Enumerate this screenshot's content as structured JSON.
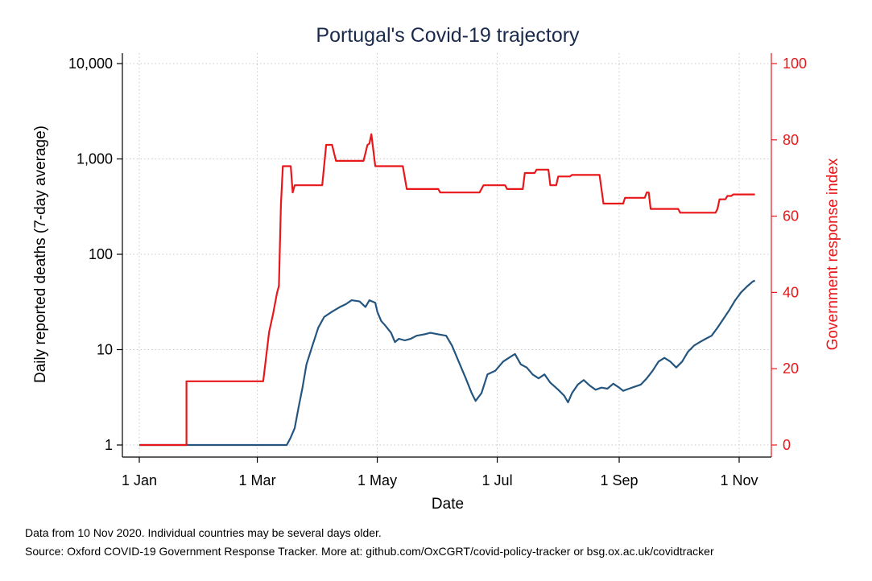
{
  "chart_data": {
    "type": "line",
    "title": "Portugal's Covid-19 trajectory",
    "xlabel": "Date",
    "ylabel_left": "Daily reported deaths (7-day average)",
    "ylabel_right": "Government response index",
    "x_ticks": [
      {
        "date": "2020-01-01",
        "label": "1 Jan"
      },
      {
        "date": "2020-03-01",
        "label": "1 Mar"
      },
      {
        "date": "2020-05-01",
        "label": "1 May"
      },
      {
        "date": "2020-07-01",
        "label": "1 Jul"
      },
      {
        "date": "2020-09-01",
        "label": "1 Sep"
      },
      {
        "date": "2020-11-01",
        "label": "1 Nov"
      }
    ],
    "xlim": [
      "2020-01-01",
      "2020-11-10"
    ],
    "y_left": {
      "scale": "log",
      "lim": [
        1,
        10000
      ],
      "ticks": [
        1,
        10,
        100,
        1000,
        10000
      ],
      "tick_labels": [
        "1",
        "10",
        "100",
        "1,000",
        "10,000"
      ]
    },
    "y_right": {
      "scale": "linear",
      "lim": [
        0,
        100
      ],
      "ticks": [
        0,
        20,
        40,
        60,
        80,
        100
      ],
      "tick_labels": [
        "0",
        "20",
        "40",
        "60",
        "80",
        "100"
      ]
    },
    "grid": true,
    "series": [
      {
        "axis": "left",
        "color": "#24557f",
        "step": false,
        "points": [
          [
            "2020-01-01",
            1
          ],
          [
            "2020-03-16",
            1
          ],
          [
            "2020-03-18",
            1.2
          ],
          [
            "2020-03-20",
            1.5
          ],
          [
            "2020-03-22",
            2.5
          ],
          [
            "2020-03-24",
            4
          ],
          [
            "2020-03-26",
            7
          ],
          [
            "2020-03-29",
            11
          ],
          [
            "2020-04-01",
            17
          ],
          [
            "2020-04-04",
            22
          ],
          [
            "2020-04-08",
            25
          ],
          [
            "2020-04-12",
            28
          ],
          [
            "2020-04-15",
            30
          ],
          [
            "2020-04-18",
            33
          ],
          [
            "2020-04-22",
            32
          ],
          [
            "2020-04-25",
            28
          ],
          [
            "2020-04-27",
            33
          ],
          [
            "2020-04-30",
            31
          ],
          [
            "2020-05-01",
            25
          ],
          [
            "2020-05-03",
            20
          ],
          [
            "2020-05-05",
            18
          ],
          [
            "2020-05-08",
            15
          ],
          [
            "2020-05-10",
            12
          ],
          [
            "2020-05-12",
            13
          ],
          [
            "2020-05-15",
            12.5
          ],
          [
            "2020-05-18",
            13
          ],
          [
            "2020-05-21",
            14
          ],
          [
            "2020-05-25",
            14.5
          ],
          [
            "2020-05-28",
            15
          ],
          [
            "2020-06-01",
            14.5
          ],
          [
            "2020-06-05",
            14
          ],
          [
            "2020-06-08",
            11
          ],
          [
            "2020-06-12",
            7
          ],
          [
            "2020-06-15",
            5
          ],
          [
            "2020-06-18",
            3.5
          ],
          [
            "2020-06-20",
            2.9
          ],
          [
            "2020-06-23",
            3.5
          ],
          [
            "2020-06-26",
            5.5
          ],
          [
            "2020-06-30",
            6
          ],
          [
            "2020-07-04",
            7.5
          ],
          [
            "2020-07-08",
            8.5
          ],
          [
            "2020-07-10",
            9
          ],
          [
            "2020-07-13",
            7
          ],
          [
            "2020-07-16",
            6.5
          ],
          [
            "2020-07-19",
            5.5
          ],
          [
            "2020-07-22",
            5
          ],
          [
            "2020-07-25",
            5.5
          ],
          [
            "2020-07-28",
            4.5
          ],
          [
            "2020-08-01",
            3.8
          ],
          [
            "2020-08-04",
            3.3
          ],
          [
            "2020-08-06",
            2.8
          ],
          [
            "2020-08-08",
            3.5
          ],
          [
            "2020-08-11",
            4.3
          ],
          [
            "2020-08-14",
            4.8
          ],
          [
            "2020-08-17",
            4.2
          ],
          [
            "2020-08-20",
            3.8
          ],
          [
            "2020-08-23",
            4
          ],
          [
            "2020-08-26",
            3.9
          ],
          [
            "2020-08-29",
            4.4
          ],
          [
            "2020-09-01",
            4
          ],
          [
            "2020-09-03",
            3.7
          ],
          [
            "2020-09-06",
            3.9
          ],
          [
            "2020-09-09",
            4.1
          ],
          [
            "2020-09-12",
            4.3
          ],
          [
            "2020-09-15",
            5
          ],
          [
            "2020-09-18",
            6
          ],
          [
            "2020-09-21",
            7.5
          ],
          [
            "2020-09-24",
            8.2
          ],
          [
            "2020-09-27",
            7.5
          ],
          [
            "2020-09-30",
            6.5
          ],
          [
            "2020-10-03",
            7.5
          ],
          [
            "2020-10-06",
            9.5
          ],
          [
            "2020-10-09",
            11
          ],
          [
            "2020-10-12",
            12
          ],
          [
            "2020-10-15",
            13
          ],
          [
            "2020-10-18",
            14
          ],
          [
            "2020-10-21",
            17
          ],
          [
            "2020-10-24",
            21
          ],
          [
            "2020-10-27",
            26
          ],
          [
            "2020-10-30",
            33
          ],
          [
            "2020-11-02",
            40
          ],
          [
            "2020-11-05",
            46
          ],
          [
            "2020-11-08",
            52
          ],
          [
            "2020-11-09",
            53
          ]
        ]
      },
      {
        "axis": "right",
        "color": "#e8171a",
        "step": true,
        "points": [
          [
            "2020-01-01",
            0
          ],
          [
            "2020-01-25",
            0
          ],
          [
            "2020-01-25",
            16.7
          ],
          [
            "2020-03-04",
            16.7
          ],
          [
            "2020-03-07",
            29.6
          ],
          [
            "2020-03-09",
            34.3
          ],
          [
            "2020-03-11",
            39.8
          ],
          [
            "2020-03-12",
            41.7
          ],
          [
            "2020-03-13",
            63
          ],
          [
            "2020-03-14",
            73.1
          ],
          [
            "2020-03-18",
            73.1
          ],
          [
            "2020-03-19",
            66.2
          ],
          [
            "2020-03-20",
            68.1
          ],
          [
            "2020-04-03",
            68.1
          ],
          [
            "2020-04-05",
            78.7
          ],
          [
            "2020-04-08",
            78.7
          ],
          [
            "2020-04-10",
            74.5
          ],
          [
            "2020-04-24",
            74.5
          ],
          [
            "2020-04-26",
            78.7
          ],
          [
            "2020-04-27",
            79
          ],
          [
            "2020-04-28",
            81.5
          ],
          [
            "2020-04-30",
            73.1
          ],
          [
            "2020-05-14",
            73.1
          ],
          [
            "2020-05-16",
            67.1
          ],
          [
            "2020-06-01",
            67.1
          ],
          [
            "2020-06-02",
            66.2
          ],
          [
            "2020-06-22",
            66.2
          ],
          [
            "2020-06-24",
            68.1
          ],
          [
            "2020-07-05",
            68.1
          ],
          [
            "2020-07-06",
            67.1
          ],
          [
            "2020-07-14",
            67.1
          ],
          [
            "2020-07-15",
            71.3
          ],
          [
            "2020-07-20",
            71.3
          ],
          [
            "2020-07-21",
            72.2
          ],
          [
            "2020-07-27",
            72.2
          ],
          [
            "2020-07-28",
            68.1
          ],
          [
            "2020-07-31",
            68.1
          ],
          [
            "2020-08-01",
            70.4
          ],
          [
            "2020-08-07",
            70.4
          ],
          [
            "2020-08-08",
            70.8
          ],
          [
            "2020-08-22",
            70.8
          ],
          [
            "2020-08-24",
            63.3
          ],
          [
            "2020-09-03",
            63.3
          ],
          [
            "2020-09-04",
            64.8
          ],
          [
            "2020-09-14",
            64.8
          ],
          [
            "2020-09-15",
            66.2
          ],
          [
            "2020-09-16",
            66.2
          ],
          [
            "2020-09-17",
            61.9
          ],
          [
            "2020-10-01",
            61.9
          ],
          [
            "2020-10-02",
            60.9
          ],
          [
            "2020-10-20",
            60.9
          ],
          [
            "2020-10-21",
            61.9
          ],
          [
            "2020-10-22",
            64.4
          ],
          [
            "2020-10-25",
            64.4
          ],
          [
            "2020-10-26",
            65.3
          ],
          [
            "2020-10-28",
            65.3
          ],
          [
            "2020-10-29",
            65.7
          ],
          [
            "2020-11-09",
            65.7
          ]
        ]
      }
    ],
    "notes": [
      "Data from 10 Nov 2020. Individual countries may be several days older.",
      "Source: Oxford COVID-19 Government Response Tracker. More at: github.com/OxCGRT/covid-policy-tracker or bsg.ox.ac.uk/covidtracker"
    ]
  }
}
